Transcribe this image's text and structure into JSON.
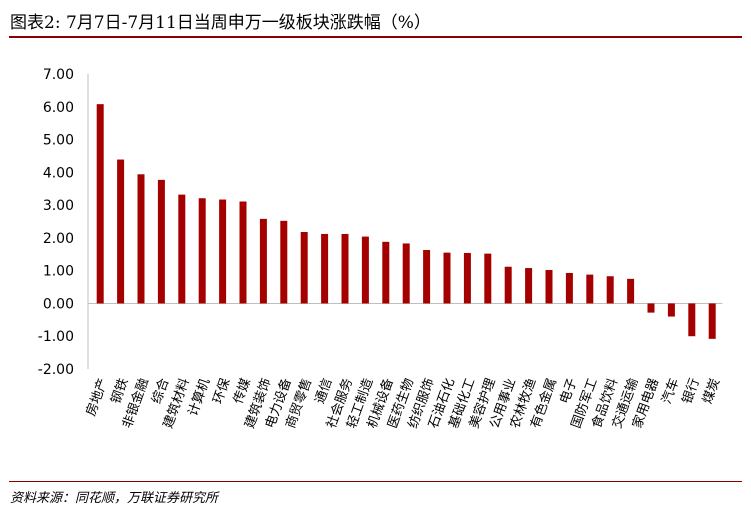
{
  "header": {
    "title": "图表2:  7月7日-7月11日当周申万一级板块涨跌幅（%）"
  },
  "footer": {
    "source": "资料来源：同花顺，万联证券研究所"
  },
  "chart_data": {
    "type": "bar",
    "title": "7月7日-7月11日当周申万一级板块涨跌幅（%）",
    "xlabel": "",
    "ylabel": "",
    "ylim": [
      -2,
      7
    ],
    "ytick_step": 1,
    "yticks": [
      "-2.00",
      "-1.00",
      "0.00",
      "1.00",
      "2.00",
      "3.00",
      "4.00",
      "5.00",
      "6.00",
      "7.00"
    ],
    "grid": false,
    "legend": "none",
    "bar_color": "#a50000",
    "categories": [
      "房地产",
      "钢铁",
      "非银金融",
      "综合",
      "建筑材料",
      "计算机",
      "环保",
      "传媒",
      "建筑装饰",
      "电力设备",
      "商贸零售",
      "通信",
      "社会服务",
      "轻工制造",
      "机械设备",
      "医药生物",
      "纺织服饰",
      "石油石化",
      "基础化工",
      "美容护理",
      "公用事业",
      "农林牧渔",
      "有色金属",
      "电子",
      "国防军工",
      "食品饮料",
      "交通运输",
      "家用电器",
      "汽车",
      "银行",
      "煤炭"
    ],
    "values": [
      6.08,
      4.39,
      3.94,
      3.77,
      3.32,
      3.21,
      3.17,
      3.11,
      2.58,
      2.52,
      2.18,
      2.12,
      2.12,
      2.04,
      1.88,
      1.83,
      1.63,
      1.55,
      1.54,
      1.52,
      1.12,
      1.08,
      1.02,
      0.93,
      0.88,
      0.83,
      0.75,
      -0.28,
      -0.4,
      -1.0,
      -1.08
    ]
  }
}
